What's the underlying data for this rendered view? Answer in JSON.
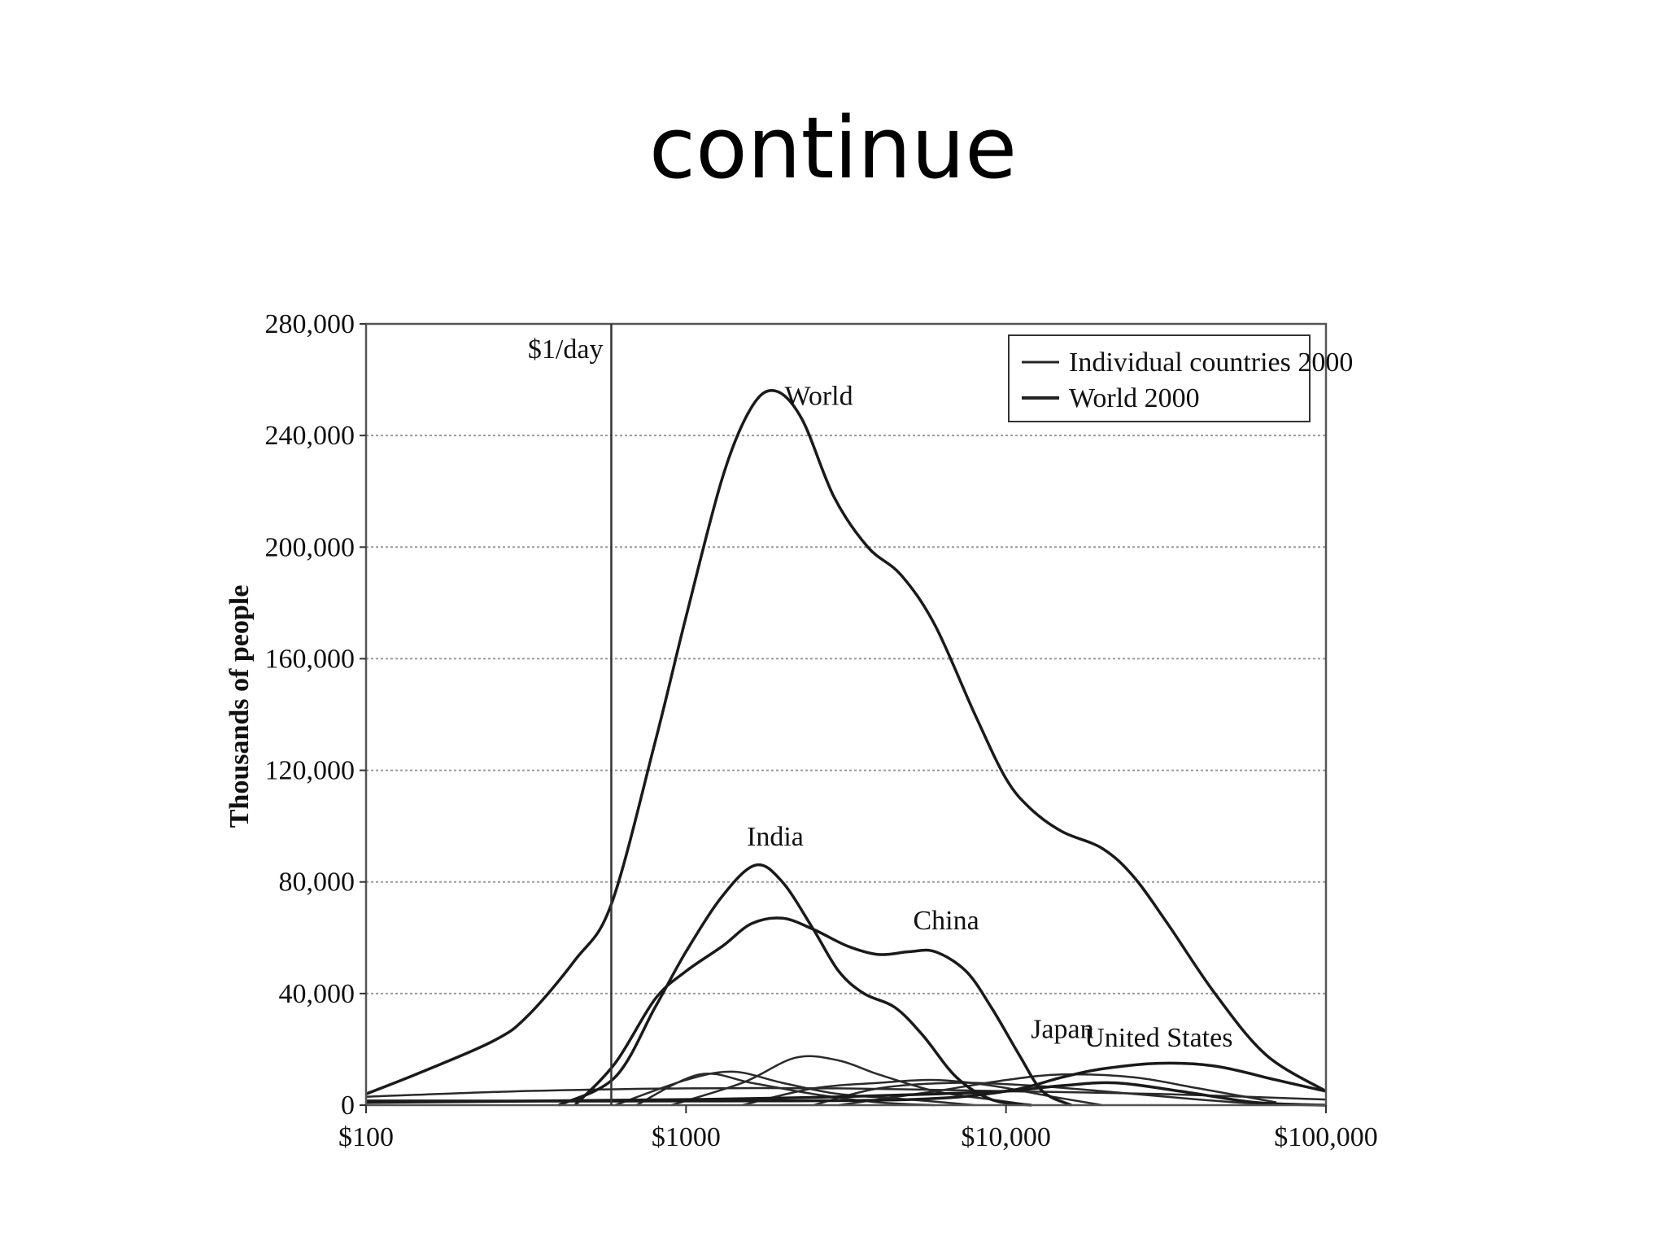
{
  "slide": {
    "title": "continue"
  },
  "chart_data": {
    "type": "line",
    "ylabel": "Thousands of people",
    "xscale": "log",
    "xlim": [
      100,
      100000
    ],
    "ylim": [
      0,
      280000
    ],
    "x_ticks": [
      100,
      1000,
      10000,
      100000
    ],
    "x_tick_labels": [
      "$100",
      "$1000",
      "$10,000",
      "$100,000"
    ],
    "y_ticks": [
      0,
      40000,
      80000,
      120000,
      160000,
      200000,
      240000,
      280000
    ],
    "y_tick_labels": [
      "0",
      "40,000",
      "80,000",
      "120,000",
      "160,000",
      "200,000",
      "240,000",
      "280,000"
    ],
    "grid": true,
    "legend": {
      "position": "top-right",
      "entries": [
        "Individual countries 2000",
        "World 2000"
      ]
    },
    "reference_line": {
      "x": 584,
      "label": "$1/day"
    },
    "series": [
      {
        "name": "World",
        "points": [
          [
            100,
            4000
          ],
          [
            150,
            12000
          ],
          [
            250,
            23000
          ],
          [
            320,
            32000
          ],
          [
            450,
            52000
          ],
          [
            584,
            72000
          ],
          [
            800,
            130000
          ],
          [
            1000,
            175000
          ],
          [
            1300,
            225000
          ],
          [
            1600,
            250000
          ],
          [
            1900,
            256000
          ],
          [
            2300,
            246000
          ],
          [
            2900,
            218000
          ],
          [
            3700,
            200000
          ],
          [
            4700,
            190000
          ],
          [
            6000,
            172000
          ],
          [
            8000,
            140000
          ],
          [
            10000,
            117000
          ],
          [
            12000,
            106000
          ],
          [
            15000,
            98000
          ],
          [
            20000,
            92000
          ],
          [
            25000,
            82000
          ],
          [
            32000,
            65000
          ],
          [
            45000,
            40000
          ],
          [
            65000,
            18000
          ],
          [
            100000,
            5000
          ]
        ]
      },
      {
        "name": "India",
        "points": [
          [
            400,
            0
          ],
          [
            600,
            10000
          ],
          [
            800,
            35000
          ],
          [
            1000,
            55000
          ],
          [
            1300,
            75000
          ],
          [
            1650,
            86000
          ],
          [
            2000,
            80000
          ],
          [
            2500,
            63000
          ],
          [
            3000,
            48000
          ],
          [
            3600,
            40000
          ],
          [
            4500,
            35000
          ],
          [
            5500,
            25000
          ],
          [
            7000,
            10000
          ],
          [
            9000,
            2000
          ],
          [
            12000,
            0
          ]
        ]
      },
      {
        "name": "China",
        "points": [
          [
            450,
            0
          ],
          [
            600,
            15000
          ],
          [
            800,
            38000
          ],
          [
            1000,
            48000
          ],
          [
            1300,
            57000
          ],
          [
            1600,
            65000
          ],
          [
            2000,
            67000
          ],
          [
            2500,
            63000
          ],
          [
            3200,
            57000
          ],
          [
            4000,
            54000
          ],
          [
            5000,
            55000
          ],
          [
            6000,
            55000
          ],
          [
            7500,
            48000
          ],
          [
            9000,
            35000
          ],
          [
            11000,
            18000
          ],
          [
            13000,
            5000
          ],
          [
            16000,
            0
          ]
        ]
      },
      {
        "name": "Japan",
        "points": [
          [
            100,
            1000
          ],
          [
            1000,
            2000
          ],
          [
            3000,
            3000
          ],
          [
            6000,
            4000
          ],
          [
            10000,
            5000
          ],
          [
            15000,
            7000
          ],
          [
            22000,
            8000
          ],
          [
            35000,
            5000
          ],
          [
            60000,
            1000
          ],
          [
            100000,
            0
          ]
        ]
      },
      {
        "name": "United States",
        "points": [
          [
            100,
            1500
          ],
          [
            1000,
            1500
          ],
          [
            5000,
            2000
          ],
          [
            10000,
            5000
          ],
          [
            15000,
            10000
          ],
          [
            20000,
            13000
          ],
          [
            30000,
            15000
          ],
          [
            45000,
            14000
          ],
          [
            70000,
            9000
          ],
          [
            100000,
            5000
          ]
        ]
      }
    ],
    "other_countries": [
      [
        [
          600,
          0
        ],
        [
          1000,
          9000
        ],
        [
          1400,
          12000
        ],
        [
          2000,
          8000
        ],
        [
          3000,
          4000
        ],
        [
          5000,
          2000
        ],
        [
          8000,
          0
        ]
      ],
      [
        [
          900,
          0
        ],
        [
          1500,
          8000
        ],
        [
          2200,
          17000
        ],
        [
          3000,
          16000
        ],
        [
          4000,
          11000
        ],
        [
          6000,
          5000
        ],
        [
          9000,
          2000
        ],
        [
          12000,
          0
        ]
      ],
      [
        [
          700,
          0
        ],
        [
          1100,
          11000
        ],
        [
          1600,
          8000
        ],
        [
          2500,
          4000
        ],
        [
          4000,
          1000
        ],
        [
          6000,
          0
        ]
      ],
      [
        [
          1500,
          0
        ],
        [
          2500,
          6000
        ],
        [
          4000,
          8000
        ],
        [
          6000,
          9000
        ],
        [
          9000,
          7000
        ],
        [
          14000,
          3000
        ],
        [
          20000,
          0
        ]
      ],
      [
        [
          2500,
          0
        ],
        [
          4000,
          6000
        ],
        [
          7000,
          8000
        ],
        [
          12000,
          7000
        ],
        [
          20000,
          5000
        ],
        [
          40000,
          2000
        ],
        [
          70000,
          0
        ]
      ],
      [
        [
          100,
          3000
        ],
        [
          300,
          5000
        ],
        [
          1000,
          6000
        ],
        [
          3000,
          6000
        ],
        [
          10000,
          5000
        ],
        [
          30000,
          4000
        ],
        [
          100000,
          2000
        ]
      ],
      [
        [
          3000,
          0
        ],
        [
          6000,
          5000
        ],
        [
          10000,
          9000
        ],
        [
          15000,
          11000
        ],
        [
          25000,
          10000
        ],
        [
          40000,
          6000
        ],
        [
          70000,
          1000
        ]
      ]
    ],
    "annotations": [
      {
        "text": "World",
        "x": 2600,
        "y": 251000
      },
      {
        "text": "India",
        "x": 1900,
        "y": 93000
      },
      {
        "text": "China",
        "x": 6500,
        "y": 63000
      },
      {
        "text": "Japan",
        "x": 15000,
        "y": 24000
      },
      {
        "text": "United States",
        "x": 30000,
        "y": 21000
      }
    ]
  }
}
